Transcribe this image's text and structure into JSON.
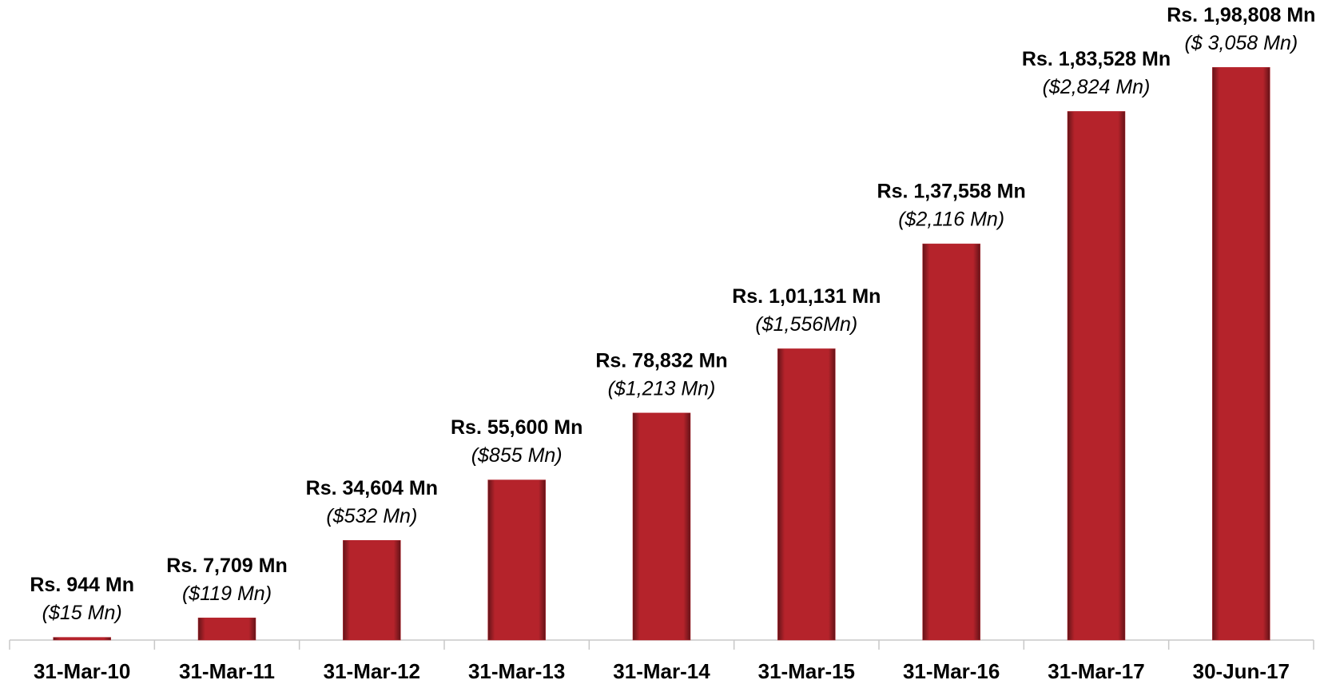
{
  "chart_data": {
    "type": "bar",
    "categories": [
      "31-Mar-10",
      "31-Mar-11",
      "31-Mar-12",
      "31-Mar-13",
      "31-Mar-14",
      "31-Mar-15",
      "31-Mar-16",
      "31-Mar-17",
      "30-Jun-17"
    ],
    "values": [
      944,
      7709,
      34604,
      55600,
      78832,
      101131,
      137558,
      183528,
      198808
    ],
    "value_labels": [
      "Rs. 944 Mn",
      "Rs. 7,709 Mn",
      "Rs. 34,604 Mn",
      "Rs. 55,600 Mn",
      "Rs. 78,832 Mn",
      "Rs. 1,01,131 Mn",
      "Rs. 1,37,558 Mn",
      "Rs. 1,83,528 Mn",
      "Rs. 1,98,808 Mn"
    ],
    "sub_labels": [
      "($15 Mn)",
      "($119 Mn)",
      "($532 Mn)",
      "($855 Mn)",
      "($1,213 Mn)",
      "($1,556Mn)",
      "($2,116 Mn)",
      "($2,824 Mn)",
      "($ 3,058 Mn)"
    ],
    "color": "#b5232b",
    "ylim": [
      0,
      210000
    ]
  }
}
